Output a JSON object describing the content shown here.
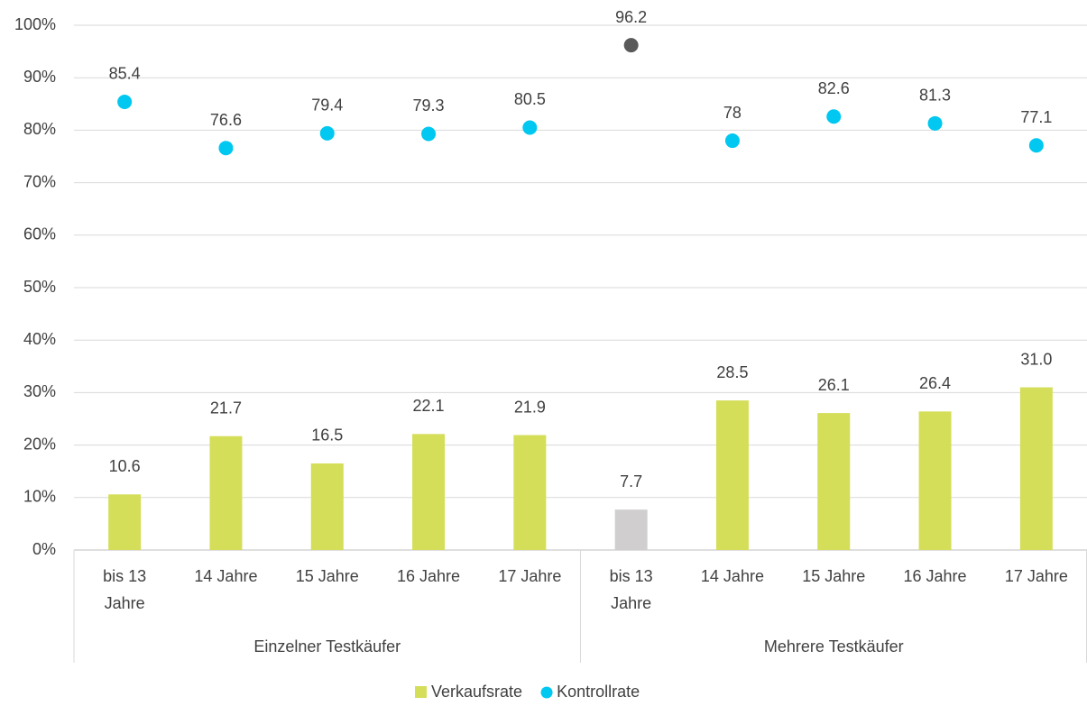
{
  "chart_data": {
    "type": "bar_scatter",
    "categories": [
      "bis 13 Jahre",
      "14 Jahre",
      "15 Jahre",
      "16 Jahre",
      "17 Jahre",
      "bis 13 Jahre",
      "14 Jahre",
      "15 Jahre",
      "16 Jahre",
      "17 Jahre"
    ],
    "groups": [
      "Einzelner Testkäufer",
      "Mehrere Testkäufer"
    ],
    "series": [
      {
        "name": "Verkaufsrate",
        "type": "bar",
        "color": "#d4de58",
        "colors": [
          "#d4de58",
          "#d4de58",
          "#d4de58",
          "#d4de58",
          "#d4de58",
          "#d0cece",
          "#d4de58",
          "#d4de58",
          "#d4de58",
          "#d4de58"
        ],
        "values": [
          10.6,
          21.7,
          16.5,
          22.1,
          21.9,
          7.7,
          28.5,
          26.1,
          26.4,
          31.0
        ],
        "value_labels": [
          "10.6",
          "21.7",
          "16.5",
          "22.1",
          "21.9",
          "7.7",
          "28.5",
          "26.1",
          "26.4",
          "31.0"
        ]
      },
      {
        "name": "Kontrollrate",
        "type": "scatter",
        "color": "#00c8f0",
        "colors": [
          "#00c8f0",
          "#00c8f0",
          "#00c8f0",
          "#00c8f0",
          "#00c8f0",
          "#595959",
          "#00c8f0",
          "#00c8f0",
          "#00c8f0",
          "#00c8f0"
        ],
        "values": [
          85.4,
          76.6,
          79.4,
          79.3,
          80.5,
          96.2,
          78,
          82.6,
          81.3,
          77.1
        ]
      }
    ],
    "ylim": [
      0,
      100
    ],
    "yticks": [
      {
        "value": 0,
        "label": "0%"
      },
      {
        "value": 10,
        "label": "10%"
      },
      {
        "value": 20,
        "label": "20%"
      },
      {
        "value": 30,
        "label": "30%"
      },
      {
        "value": 40,
        "label": "40%"
      },
      {
        "value": 50,
        "label": "50%"
      },
      {
        "value": 60,
        "label": "60%"
      },
      {
        "value": 70,
        "label": "70%"
      },
      {
        "value": 80,
        "label": "80%"
      },
      {
        "value": 90,
        "label": "90%"
      },
      {
        "value": 100,
        "label": "100%"
      }
    ],
    "grid": true,
    "legend": "bottom"
  }
}
